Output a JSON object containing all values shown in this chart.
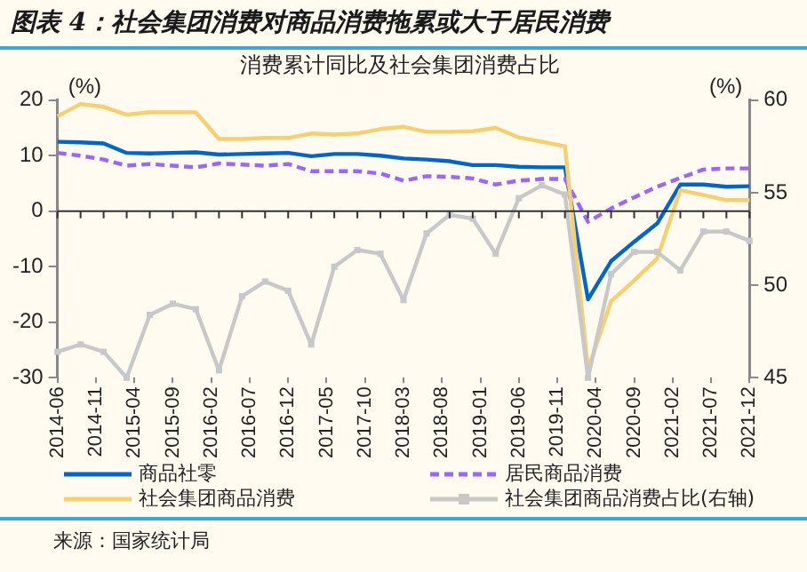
{
  "chart_data": {
    "type": "line",
    "title": "图表 4：社会集团消费对商品消费拖累或大于居民消费",
    "subtitle": "消费累计同比及社会集团消费占比",
    "ylabel": "(%)",
    "y2label": "(%)",
    "categories": [
      "2014-06",
      null,
      null,
      null,
      null,
      "2014-11",
      null,
      null,
      null,
      null,
      "2015-04",
      null,
      null,
      null,
      null,
      "2015-09",
      null,
      null,
      null,
      null,
      "2016-02",
      null,
      null,
      null,
      null,
      "2016-07",
      null,
      null,
      null,
      null,
      "2016-12",
      null,
      null,
      null,
      null,
      "2017-05",
      null,
      null,
      null,
      null,
      "2017-10",
      null,
      null,
      null,
      null,
      "2018-03",
      null,
      null,
      null,
      null,
      "2018-08",
      null,
      null,
      null,
      null,
      "2019-01",
      null,
      null,
      null,
      null,
      "2019-06",
      null,
      null,
      null,
      null,
      "2019-11",
      null,
      null,
      null,
      null,
      "2020-04",
      null,
      null,
      null,
      null,
      "2020-09",
      null,
      null,
      null,
      null,
      "2021-02",
      null,
      null,
      null,
      null,
      "2021-07",
      null,
      null,
      null,
      null,
      "2021-12"
    ],
    "series": [
      {
        "name": "商品社零",
        "color": "#0066cc",
        "marker": "none",
        "line_style": "solid",
        "values": [
          12.5,
          null,
          null,
          12.4,
          null,
          null,
          12.2,
          null,
          null,
          10.5,
          null,
          null,
          10.4,
          null,
          null,
          10.5,
          null,
          null,
          10.6,
          null,
          null,
          10.2,
          null,
          null,
          10.3,
          null,
          null,
          10.4,
          null,
          null,
          10.5,
          null,
          null,
          9.9,
          null,
          null,
          10.3,
          null,
          null,
          10.3,
          null,
          null,
          10.0,
          null,
          null,
          9.5,
          null,
          null,
          9.3,
          null,
          null,
          9.0,
          null,
          null,
          8.3,
          null,
          null,
          8.3,
          null,
          null,
          8.0,
          null,
          null,
          7.9,
          null,
          null,
          7.9,
          null,
          null,
          -15.9,
          null,
          null,
          -9.0,
          null,
          null,
          -5.5,
          null,
          null,
          -2.2,
          null,
          null,
          4.8,
          null,
          null,
          4.8,
          null,
          null,
          4.4,
          null,
          null,
          4.5
        ]
      },
      {
        "name": "居民商品消费",
        "color": "#9966ff",
        "marker": "none",
        "line_style": "dashed",
        "values": [
          10.5,
          null,
          null,
          10.0,
          null,
          null,
          9.3,
          null,
          null,
          8.2,
          null,
          null,
          8.5,
          null,
          null,
          8.2,
          null,
          null,
          7.9,
          null,
          null,
          8.6,
          null,
          null,
          8.4,
          null,
          null,
          8.2,
          null,
          null,
          8.5,
          null,
          null,
          7.2,
          null,
          null,
          7.2,
          null,
          null,
          7.2,
          null,
          null,
          6.8,
          null,
          null,
          5.5,
          null,
          null,
          6.3,
          null,
          null,
          6.2,
          null,
          null,
          5.9,
          null,
          null,
          4.8,
          null,
          null,
          5.5,
          null,
          null,
          5.8,
          null,
          null,
          5.8,
          null,
          null,
          -1.9,
          null,
          null,
          0.5,
          null,
          null,
          2.5,
          null,
          null,
          4.4,
          null,
          null,
          6.0,
          null,
          null,
          7.5,
          null,
          null,
          7.7,
          null,
          null,
          7.7
        ]
      },
      {
        "name": "社会集团商品消费",
        "color": "#f7cf6e",
        "marker": "none",
        "line_style": "solid",
        "values": [
          17.1,
          null,
          null,
          19.3,
          null,
          null,
          18.8,
          null,
          null,
          17.4,
          null,
          null,
          17.8,
          null,
          null,
          17.8,
          null,
          null,
          17.8,
          null,
          null,
          13.0,
          null,
          null,
          13.0,
          null,
          null,
          13.2,
          null,
          null,
          13.2,
          null,
          null,
          14.0,
          null,
          null,
          13.8,
          null,
          null,
          14.0,
          null,
          null,
          14.8,
          null,
          null,
          15.2,
          null,
          null,
          14.3,
          null,
          null,
          14.3,
          null,
          null,
          14.4,
          null,
          null,
          15.0,
          null,
          null,
          13.3,
          null,
          null,
          12.5,
          null,
          null,
          11.7,
          null,
          null,
          -28.5,
          null,
          null,
          -16.2,
          null,
          null,
          -12.5,
          null,
          null,
          -8.5,
          null,
          null,
          3.8,
          null,
          null,
          2.9,
          null,
          null,
          2.0,
          null,
          null,
          2.0
        ]
      },
      {
        "name": "社会集团商品消费占比(右轴)",
        "color": "#c8c8c8",
        "marker": "square",
        "line_style": "solid",
        "axis": "y2",
        "values": [
          46.4,
          null,
          null,
          46.8,
          null,
          null,
          46.4,
          null,
          null,
          45.0,
          null,
          null,
          48.4,
          null,
          null,
          49.0,
          null,
          null,
          48.7,
          null,
          null,
          45.4,
          null,
          null,
          49.4,
          null,
          null,
          50.2,
          null,
          null,
          49.7,
          null,
          null,
          46.8,
          null,
          null,
          51.0,
          null,
          null,
          51.9,
          null,
          null,
          51.7,
          null,
          null,
          49.2,
          null,
          null,
          52.8,
          null,
          null,
          53.8,
          null,
          null,
          53.6,
          null,
          null,
          51.7,
          null,
          null,
          54.7,
          null,
          null,
          55.4,
          null,
          null,
          54.9,
          null,
          null,
          45.0,
          null,
          null,
          50.6,
          null,
          null,
          51.8,
          null,
          null,
          51.8,
          null,
          null,
          50.8,
          null,
          null,
          52.9,
          null,
          null,
          52.9,
          null,
          null,
          52.4
        ]
      }
    ],
    "ylim": [
      -30,
      20
    ],
    "yticks": [
      -30,
      -20,
      -10,
      0,
      10,
      20
    ],
    "y2lim": [
      45,
      60
    ],
    "y2ticks": [
      45,
      50,
      55,
      60
    ],
    "grid": false,
    "ref_lines": [
      {
        "axis": "y",
        "value": 0,
        "color": "#333333"
      }
    ],
    "legend": "bottom",
    "annotations": [
      "来源：国家统计局"
    ]
  }
}
